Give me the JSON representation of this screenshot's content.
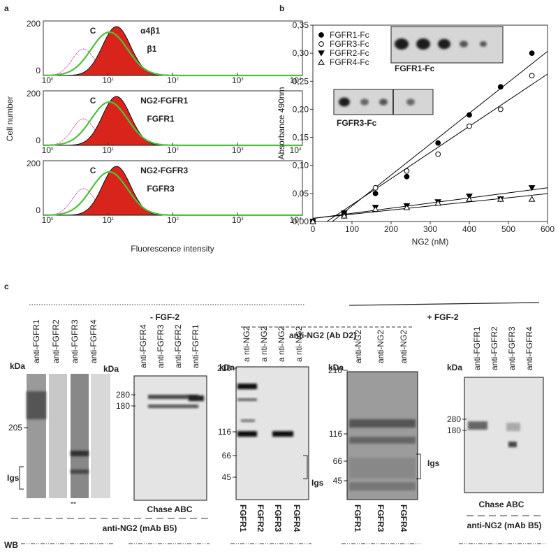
{
  "panel_a": {
    "letter": "a",
    "y_label": "Cell number",
    "x_label": "Fluorescence intensity",
    "x_tick_base": "10",
    "x_tick_exponents": [
      "0",
      "1",
      "2",
      "3",
      "4"
    ],
    "y_ticks": [
      "200",
      "0"
    ],
    "histograms": [
      {
        "control": "C",
        "red": "α4β1",
        "green": "β1"
      },
      {
        "control": "C",
        "red": "NG2-FGFR1",
        "green": "FGFR1"
      },
      {
        "control": "C",
        "red": "NG2-FGFR3",
        "green": "FGFR3"
      }
    ]
  },
  "panel_b": {
    "letter": "b",
    "insets": [
      "FGFR1-Fc",
      "FGFR3-Fc"
    ]
  },
  "chart_data": {
    "type": "scatter",
    "x_label": "NG2 (nM)",
    "y_label": "Absorbance 490nm",
    "xlim": [
      0,
      600
    ],
    "xticks": [
      0,
      100,
      200,
      300,
      400,
      500,
      600
    ],
    "ylim": [
      0,
      0.35
    ],
    "yticks": [
      {
        "value": 0,
        "label": "0,00"
      },
      {
        "value": 0.05,
        "label": "0,05"
      },
      {
        "value": 0.1,
        "label": "0,10"
      },
      {
        "value": 0.15,
        "label": "0,15"
      },
      {
        "value": 0.2,
        "label": "0,20"
      },
      {
        "value": 0.25,
        "label": "0,25"
      },
      {
        "value": 0.3,
        "label": "0,30"
      },
      {
        "value": 0.35,
        "label": "0,35"
      }
    ],
    "x": [
      0,
      80,
      160,
      240,
      320,
      400,
      480,
      560
    ],
    "trendline": true,
    "legend": "upper left",
    "series": [
      {
        "name": "FGFR1-Fc",
        "color": "#000000",
        "marker": "filled-circle",
        "values": [
          0,
          0.015,
          0.05,
          0.08,
          0.14,
          0.19,
          0.24,
          0.3
        ]
      },
      {
        "name": "FGFR3-Fc",
        "color": "#000000",
        "marker": "open-circle",
        "values": [
          0,
          0.01,
          0.06,
          0.09,
          0.12,
          0.17,
          0.2,
          0.26
        ]
      },
      {
        "name": "FGFR2-Fc",
        "color": "#000000",
        "marker": "filled-triangle-down",
        "values": [
          0,
          0.015,
          0.025,
          0.028,
          0.035,
          0.045,
          0.04,
          0.06
        ]
      },
      {
        "name": "FGFR4-Fc",
        "color": "#000000",
        "marker": "open-triangle-up",
        "values": [
          0,
          0.01,
          0.022,
          0.025,
          0.033,
          0.04,
          0.04,
          0.04
        ]
      }
    ]
  },
  "panel_c": {
    "letter": "c",
    "left_condition": "- FGF-2",
    "right_condition": "+ FGF-2",
    "wb": "WB",
    "header_d2": "anti-NG2 (Ab D2)",
    "footer_b5_left": "anti-NG2 (mAb B5)",
    "footer_b5_right": "anti-NG2 (mAb B5)",
    "blots": [
      {
        "lanes": [
          "anti-FGFR1",
          "anti-FGFR2",
          "anti-FGFR3",
          "anti-FGFR4"
        ],
        "unit": "kDa",
        "markers": [
          "205"
        ],
        "igs": "Igs",
        "below": "--"
      },
      {
        "lanes": [
          "anti-FGFR4",
          "anti-FGFR3",
          "anti-FGFR2",
          "anti-FGFR1"
        ],
        "unit": "kDa",
        "markers": [
          "280",
          "180"
        ],
        "below": "Chase ABC"
      },
      {
        "lanes": [
          "a nti-NG2",
          "a nti-NG2",
          "a nti-NG2",
          "a nti-NG2"
        ],
        "unit": "kDa",
        "markers": [
          "210",
          "116",
          "66",
          "45"
        ],
        "igs": "Igs",
        "bottom": [
          "FGFR1",
          "FGFR2",
          "FGFR3",
          "FGFR4"
        ]
      },
      {
        "lanes": [
          "anti-NG2",
          "anti-NG2",
          "anti-NG2"
        ],
        "unit": "kDa",
        "markers": [
          "210",
          "116",
          "66",
          "45"
        ],
        "igs": "Igs",
        "bottom": [
          "FGFR1",
          "FGFR3",
          "FGFR4"
        ]
      },
      {
        "lanes": [
          "anti-FGFR1",
          "anti-FGFR2",
          "anti-FGFR3",
          "anti-FGFR4"
        ],
        "unit": "kDa",
        "markers": [
          "280",
          "180"
        ],
        "below": "Chase ABC"
      }
    ]
  }
}
